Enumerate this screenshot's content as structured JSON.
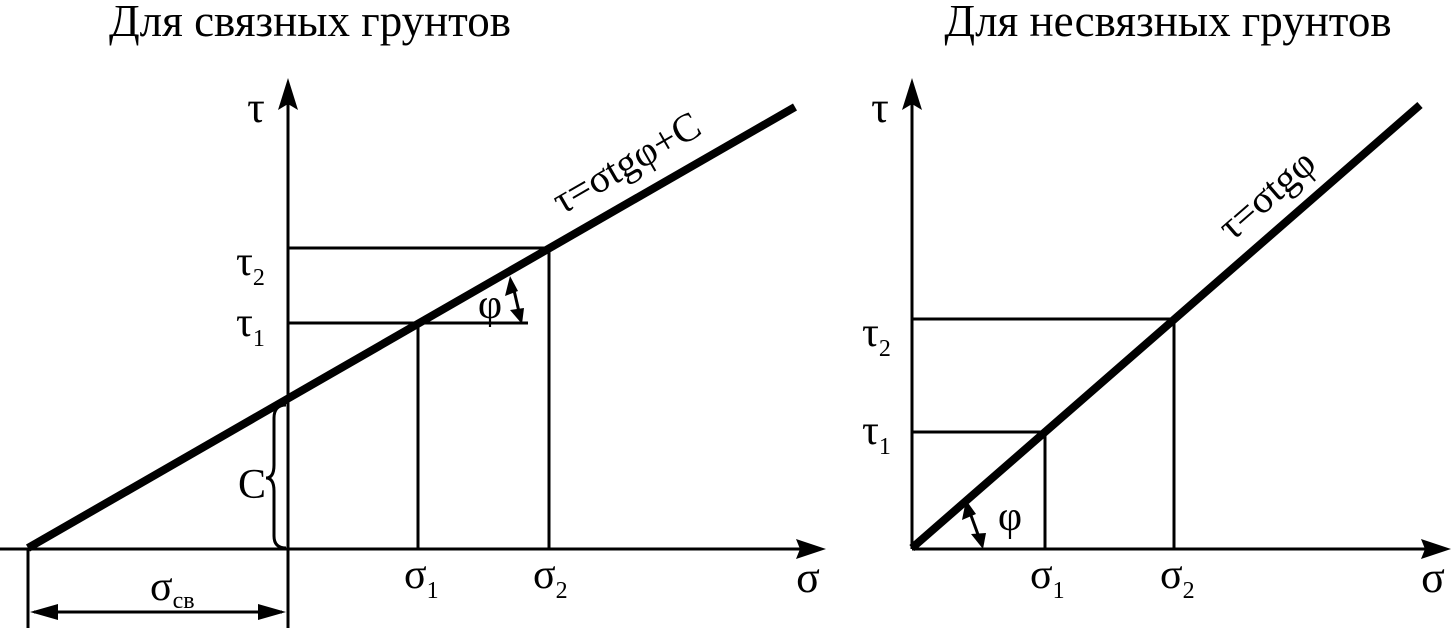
{
  "left": {
    "title": "Для связных грунтов",
    "y_axis": "τ",
    "x_axis": "σ",
    "tau1": "τ",
    "tau1_sub": "1",
    "tau2": "τ",
    "tau2_sub": "2",
    "sigma1": "σ",
    "sigma1_sub": "1",
    "sigma2": "σ",
    "sigma2_sub": "2",
    "sigma_cv": "σ",
    "sigma_cv_sub": "св",
    "cohesion": "C",
    "angle": "φ",
    "formula": "τ=σtgφ+C"
  },
  "right": {
    "title": "Для несвязных грунтов",
    "y_axis": "τ",
    "x_axis": "σ",
    "tau1": "τ",
    "tau1_sub": "1",
    "tau2": "τ",
    "tau2_sub": "2",
    "sigma1": "σ",
    "sigma1_sub": "1",
    "sigma2": "σ",
    "sigma2_sub": "2",
    "angle": "φ",
    "formula": "τ=σtgφ"
  }
}
